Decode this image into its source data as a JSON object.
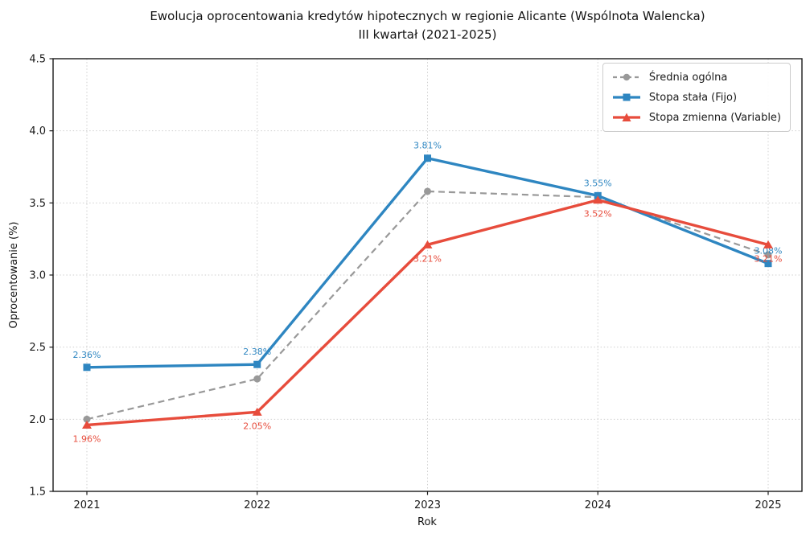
{
  "title": {
    "line1": "Ewolucja oprocentowania kredytów hipotecznych w regionie Alicante (Wspólnota Walencka)",
    "line2": "III kwartał (2021-2025)"
  },
  "chart_data": {
    "type": "line",
    "x": [
      "2021",
      "2022",
      "2023",
      "2024",
      "2025"
    ],
    "xlabel": "Rok",
    "ylabel": "Oprocentowanie (%)",
    "ylim": [
      1.5,
      4.5
    ],
    "yticks": [
      1.5,
      2.0,
      2.5,
      3.0,
      3.5,
      4.0,
      4.5
    ],
    "grid": true,
    "grid_style": "dotted",
    "legend_position": "upper right",
    "colors": {
      "grid": "#cfcfcf",
      "spine": "#1a1a1a",
      "tick_text": "#1a1a1a"
    },
    "series": [
      {
        "name": "Średnia ogólna",
        "color": "#999999",
        "dash": true,
        "marker": "circle",
        "values": [
          2.0,
          2.28,
          3.58,
          3.54,
          3.14
        ],
        "labels": null,
        "label_position": "above"
      },
      {
        "name": "Stopa stała (Fijo)",
        "color": "#2E86C1",
        "dash": false,
        "marker": "square",
        "values": [
          2.36,
          2.38,
          3.81,
          3.55,
          3.08
        ],
        "labels": [
          "2.36%",
          "2.38%",
          "3.81%",
          "3.55%",
          "3.08%"
        ],
        "label_position": "above"
      },
      {
        "name": "Stopa zmienna (Variable)",
        "color": "#E74C3C",
        "dash": false,
        "marker": "triangle",
        "values": [
          1.96,
          2.05,
          3.21,
          3.52,
          3.21
        ],
        "labels": [
          "1.96%",
          "2.05%",
          "3.21%",
          "3.52%",
          "3.21%"
        ],
        "label_position": "below"
      }
    ]
  }
}
